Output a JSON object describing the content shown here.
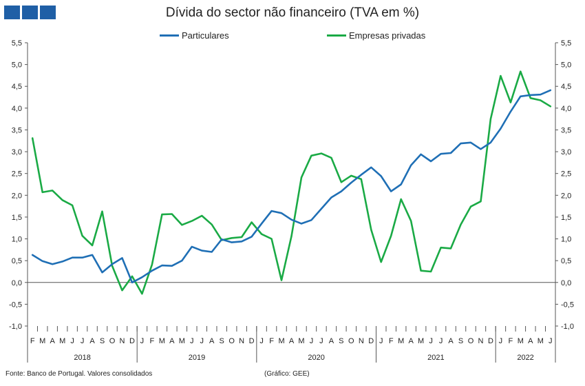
{
  "title": "Dívida do sector não financeiro (TVA em %)",
  "legend": {
    "particulares": "Particulares",
    "empresas": "Empresas privadas"
  },
  "colors": {
    "particulares": "#1f6fb5",
    "empresas": "#1aaa45",
    "logo": "#1f5fa6",
    "axis": "#555555"
  },
  "footer": {
    "source": "Fonte: Banco de Portugal. Valores consolidados",
    "credit": "(Gráfico: GEE)"
  },
  "chart_data": {
    "type": "line",
    "title": "Dívida do sector não financeiro (TVA em %)",
    "x": [
      "F",
      "M",
      "A",
      "M",
      "J",
      "J",
      "A",
      "S",
      "O",
      "N",
      "D",
      "J",
      "F",
      "M",
      "A",
      "M",
      "J",
      "J",
      "A",
      "S",
      "O",
      "N",
      "D",
      "J",
      "F",
      "M",
      "A",
      "M",
      "J",
      "J",
      "A",
      "S",
      "O",
      "N",
      "D",
      "J",
      "F",
      "M",
      "A",
      "M",
      "J",
      "J",
      "A",
      "S",
      "O",
      "N",
      "D",
      "J",
      "F",
      "M",
      "A",
      "M",
      "J"
    ],
    "years": [
      {
        "label": "2018",
        "start": 0,
        "end": 11
      },
      {
        "label": "2019",
        "start": 11,
        "end": 23
      },
      {
        "label": "2020",
        "start": 23,
        "end": 35
      },
      {
        "label": "2021",
        "start": 35,
        "end": 47
      },
      {
        "label": "2022",
        "start": 47,
        "end": 53
      }
    ],
    "ylim": [
      -1.0,
      5.5
    ],
    "yticks": [
      "-1,0",
      "-0,5",
      "0,0",
      "0,5",
      "1,0",
      "1,5",
      "2,0",
      "2,5",
      "3,0",
      "3,5",
      "4,0",
      "4,5",
      "5,0",
      "5,5"
    ],
    "series": [
      {
        "name": "Particulares",
        "values": [
          0.63,
          0.49,
          0.42,
          0.48,
          0.57,
          0.57,
          0.63,
          0.23,
          0.42,
          0.56,
          0.0,
          0.12,
          0.27,
          0.39,
          0.38,
          0.5,
          0.82,
          0.73,
          0.7,
          0.99,
          0.92,
          0.94,
          1.05,
          1.35,
          1.64,
          1.59,
          1.44,
          1.35,
          1.43,
          1.69,
          1.95,
          2.09,
          2.29,
          2.47,
          2.64,
          2.44,
          2.09,
          2.25,
          2.69,
          2.94,
          2.78,
          2.95,
          2.97,
          3.19,
          3.21,
          3.06,
          3.21,
          3.53,
          3.92,
          4.27,
          4.3,
          4.31,
          4.41
        ]
      },
      {
        "name": "Empresas privadas",
        "values": [
          3.31,
          2.07,
          2.11,
          1.89,
          1.77,
          1.07,
          0.85,
          1.63,
          0.38,
          -0.18,
          0.14,
          -0.26,
          0.41,
          1.56,
          1.57,
          1.32,
          1.41,
          1.53,
          1.33,
          0.97,
          1.02,
          1.04,
          1.38,
          1.11,
          1.0,
          0.05,
          1.06,
          2.41,
          2.91,
          2.96,
          2.86,
          2.3,
          2.45,
          2.37,
          1.21,
          0.47,
          1.07,
          1.91,
          1.41,
          0.27,
          0.25,
          0.8,
          0.78,
          1.33,
          1.74,
          1.86,
          3.75,
          4.74,
          4.13,
          4.84,
          4.23,
          4.18,
          4.04
        ]
      }
    ],
    "grid": false,
    "legend_position": "top"
  }
}
